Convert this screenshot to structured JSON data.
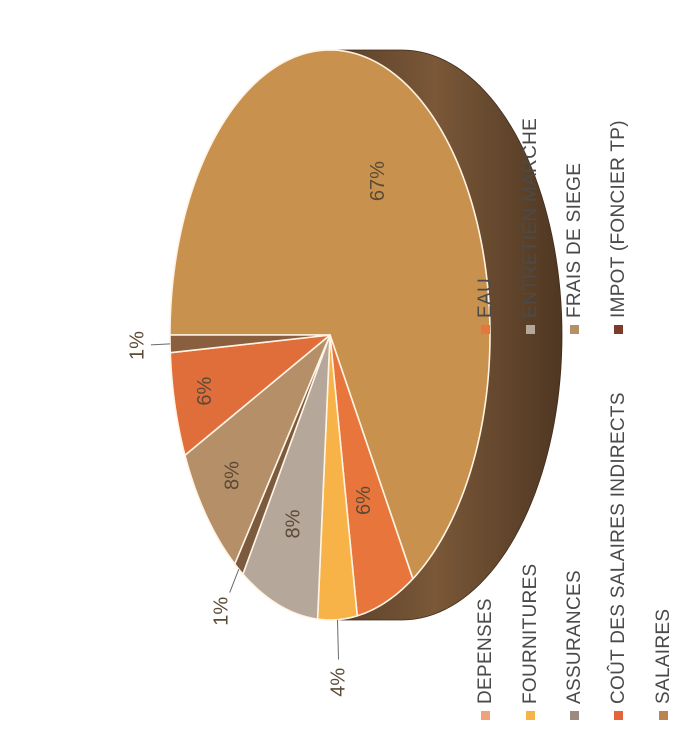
{
  "chart_data": {
    "type": "pie",
    "title": "",
    "legend_position": "bottom",
    "orientation": "rotated-90-ccw",
    "slices": [
      {
        "name": "SALAIRES",
        "value": 67,
        "label": "67%",
        "color": "#c8924e"
      },
      {
        "name": "COÛT DES SALAIRES INDIRECTS",
        "value": 6,
        "label": "6%",
        "color": "#e8763c"
      },
      {
        "name": "FOURNITURES",
        "value": 4,
        "label": "4%",
        "color": "#f7b347"
      },
      {
        "name": "ASSURANCES",
        "value": 8,
        "label": "8%",
        "color": "#b5a799"
      },
      {
        "name": "IMPOT (FONCIER TP)",
        "value": 1,
        "label": "1%",
        "color": "#7b5a3d"
      },
      {
        "name": "FRAIS DE SIEGE",
        "value": 8,
        "label": "8%",
        "color": "#b48f68"
      },
      {
        "name": "EAU",
        "value": 6,
        "label": "6%",
        "color": "#e06e3a"
      },
      {
        "name": "ENTRETIEN MARCHE",
        "value": 1,
        "label": "1%",
        "color": "#8a5f3f"
      }
    ],
    "legend": [
      {
        "name": "DEPENSES",
        "color": "#f0a37a"
      },
      {
        "name": "FOURNITURES",
        "color": "#f7b347"
      },
      {
        "name": "ASSURANCES",
        "color": "#9b8b80"
      },
      {
        "name": "COÛT DES SALAIRES INDIRECTS",
        "color": "#e5643a"
      },
      {
        "name": "SALAIRES",
        "color": "#b8864e"
      },
      {
        "name": "EAU",
        "color": "#e8763c"
      },
      {
        "name": "ENTRETIEN MARCHE",
        "color": "#b5a799"
      },
      {
        "name": "FRAIS DE SIEGE",
        "color": "#b48f68"
      },
      {
        "name": "IMPOT (FONCIER TP)",
        "color": "#7b3a2a"
      }
    ],
    "side_color": "#6e4e32"
  }
}
